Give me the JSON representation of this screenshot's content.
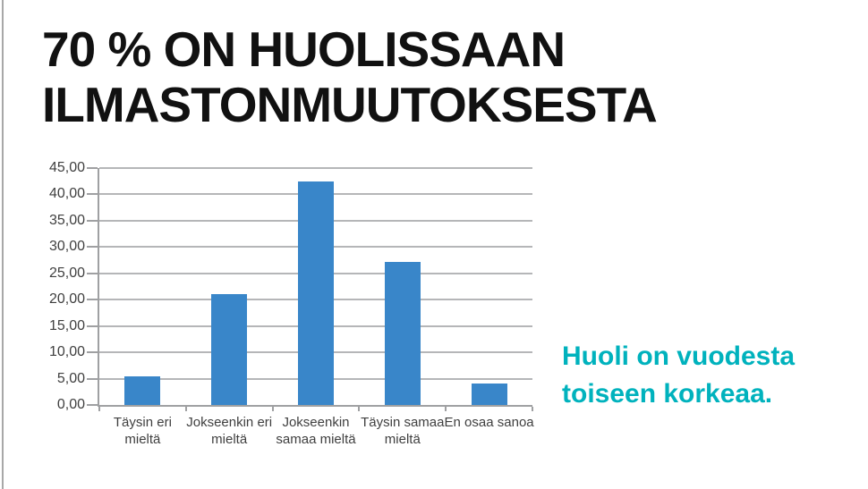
{
  "page": {
    "background": "#ffffff",
    "left_edge_line_color": "#a8a8a8"
  },
  "header": {
    "title_lines": [
      "70 % ON HUOLISSAAN",
      "ILMASTONMUUTOKSESTA"
    ],
    "title_color": "#111111"
  },
  "note": {
    "lines": [
      "Huoli on vuodesta",
      "toiseen korkeaa."
    ],
    "color": "#00b2bd"
  },
  "chart_data": {
    "type": "bar",
    "categories": [
      "Täysin eri mieltä",
      "Jokseenkin eri mieltä",
      "Jokseenkin samaa mieltä",
      "Täysin samaa mieltä",
      "En osaa sanoa"
    ],
    "values": [
      5.4,
      21.1,
      42.5,
      27.1,
      4.1
    ],
    "title": "",
    "xlabel": "",
    "ylabel": "",
    "ylim": [
      0,
      45
    ],
    "ytick_step": 5,
    "ytick_labels": [
      "0,00",
      "5,00",
      "10,00",
      "15,00",
      "20,00",
      "25,00",
      "30,00",
      "35,00",
      "40,00",
      "45,00"
    ],
    "grid": true,
    "legend_position": "none",
    "bar_color": "#3986c9",
    "gridline_color": "#b5b6b8",
    "axis_color": "#9fa0a2",
    "tick_label_color": "#3f3f3f"
  }
}
